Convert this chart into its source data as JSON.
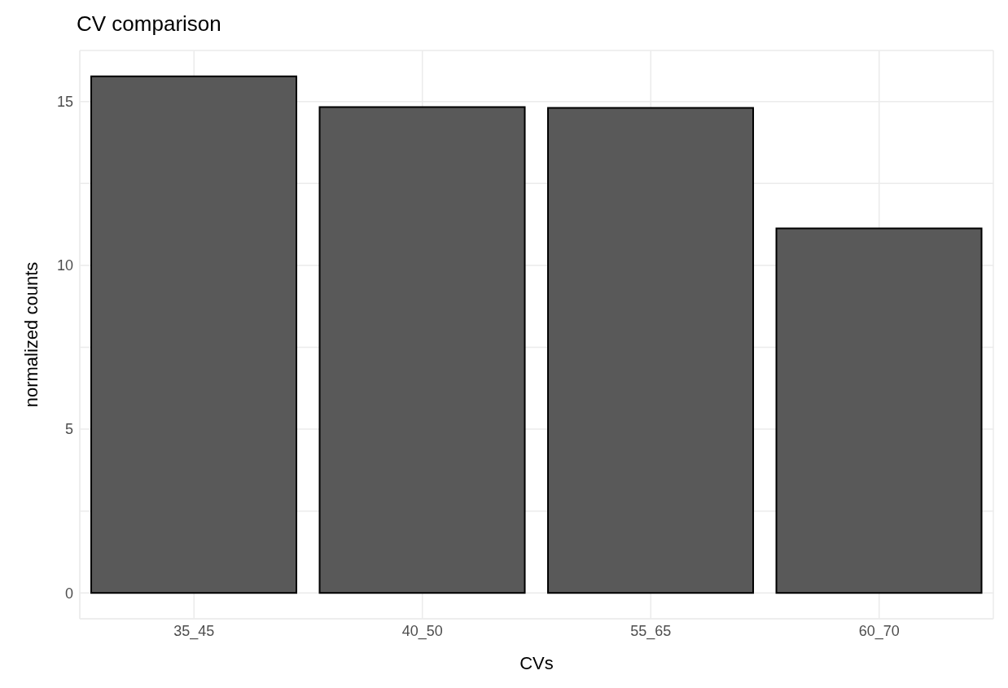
{
  "chart_data": {
    "type": "bar",
    "title": "CV comparison",
    "xlabel": "CVs",
    "ylabel": "normalized counts",
    "categories": [
      "35_45",
      "40_50",
      "55_65",
      "60_70"
    ],
    "values": [
      15.77,
      14.83,
      14.81,
      11.13
    ],
    "color": "#595959",
    "ylim": [
      -0.79,
      16.56
    ],
    "yticks": [
      0,
      {
        "value": 2.5,
        "label": null
      },
      5,
      {
        "value": 7.5,
        "label": null
      },
      10,
      {
        "value": 12.5,
        "label": null
      },
      15
    ],
    "grid": true
  }
}
